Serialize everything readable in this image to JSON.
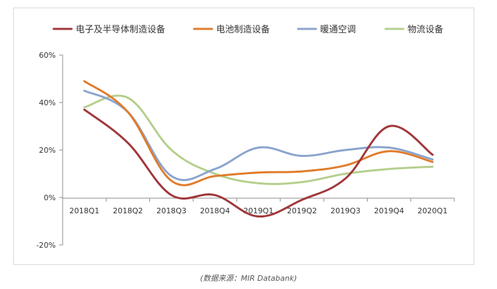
{
  "chart_data": {
    "type": "line",
    "categories": [
      "2018Q1",
      "2018Q2",
      "2018Q3",
      "2018Q4",
      "2019Q1",
      "2019Q2",
      "2019Q3",
      "2019Q4",
      "2020Q1"
    ],
    "series": [
      {
        "name": "电子及半导体制造设备",
        "color": "#a0373a",
        "values": [
          37,
          23,
          1,
          1,
          -8,
          -1,
          8,
          30,
          18
        ]
      },
      {
        "name": "电池制造设备",
        "color": "#e07c2c",
        "values": [
          49,
          36,
          7,
          9,
          10.5,
          11,
          13.5,
          19.5,
          15
        ]
      },
      {
        "name": "暖通空调",
        "color": "#8ba4cc",
        "values": [
          45,
          36,
          9,
          12,
          21,
          17.5,
          20,
          21,
          16
        ]
      },
      {
        "name": "物流设备",
        "color": "#b5cf8c",
        "values": [
          38,
          42,
          20,
          10,
          6,
          6.5,
          10,
          12,
          13
        ]
      }
    ],
    "yticks": [
      "60%",
      "40%",
      "20%",
      "0%",
      "-20%"
    ],
    "ylim": [
      -20,
      60
    ],
    "grid": false,
    "legend": "top"
  },
  "source_note": "(数据来源：MIR Databank)"
}
